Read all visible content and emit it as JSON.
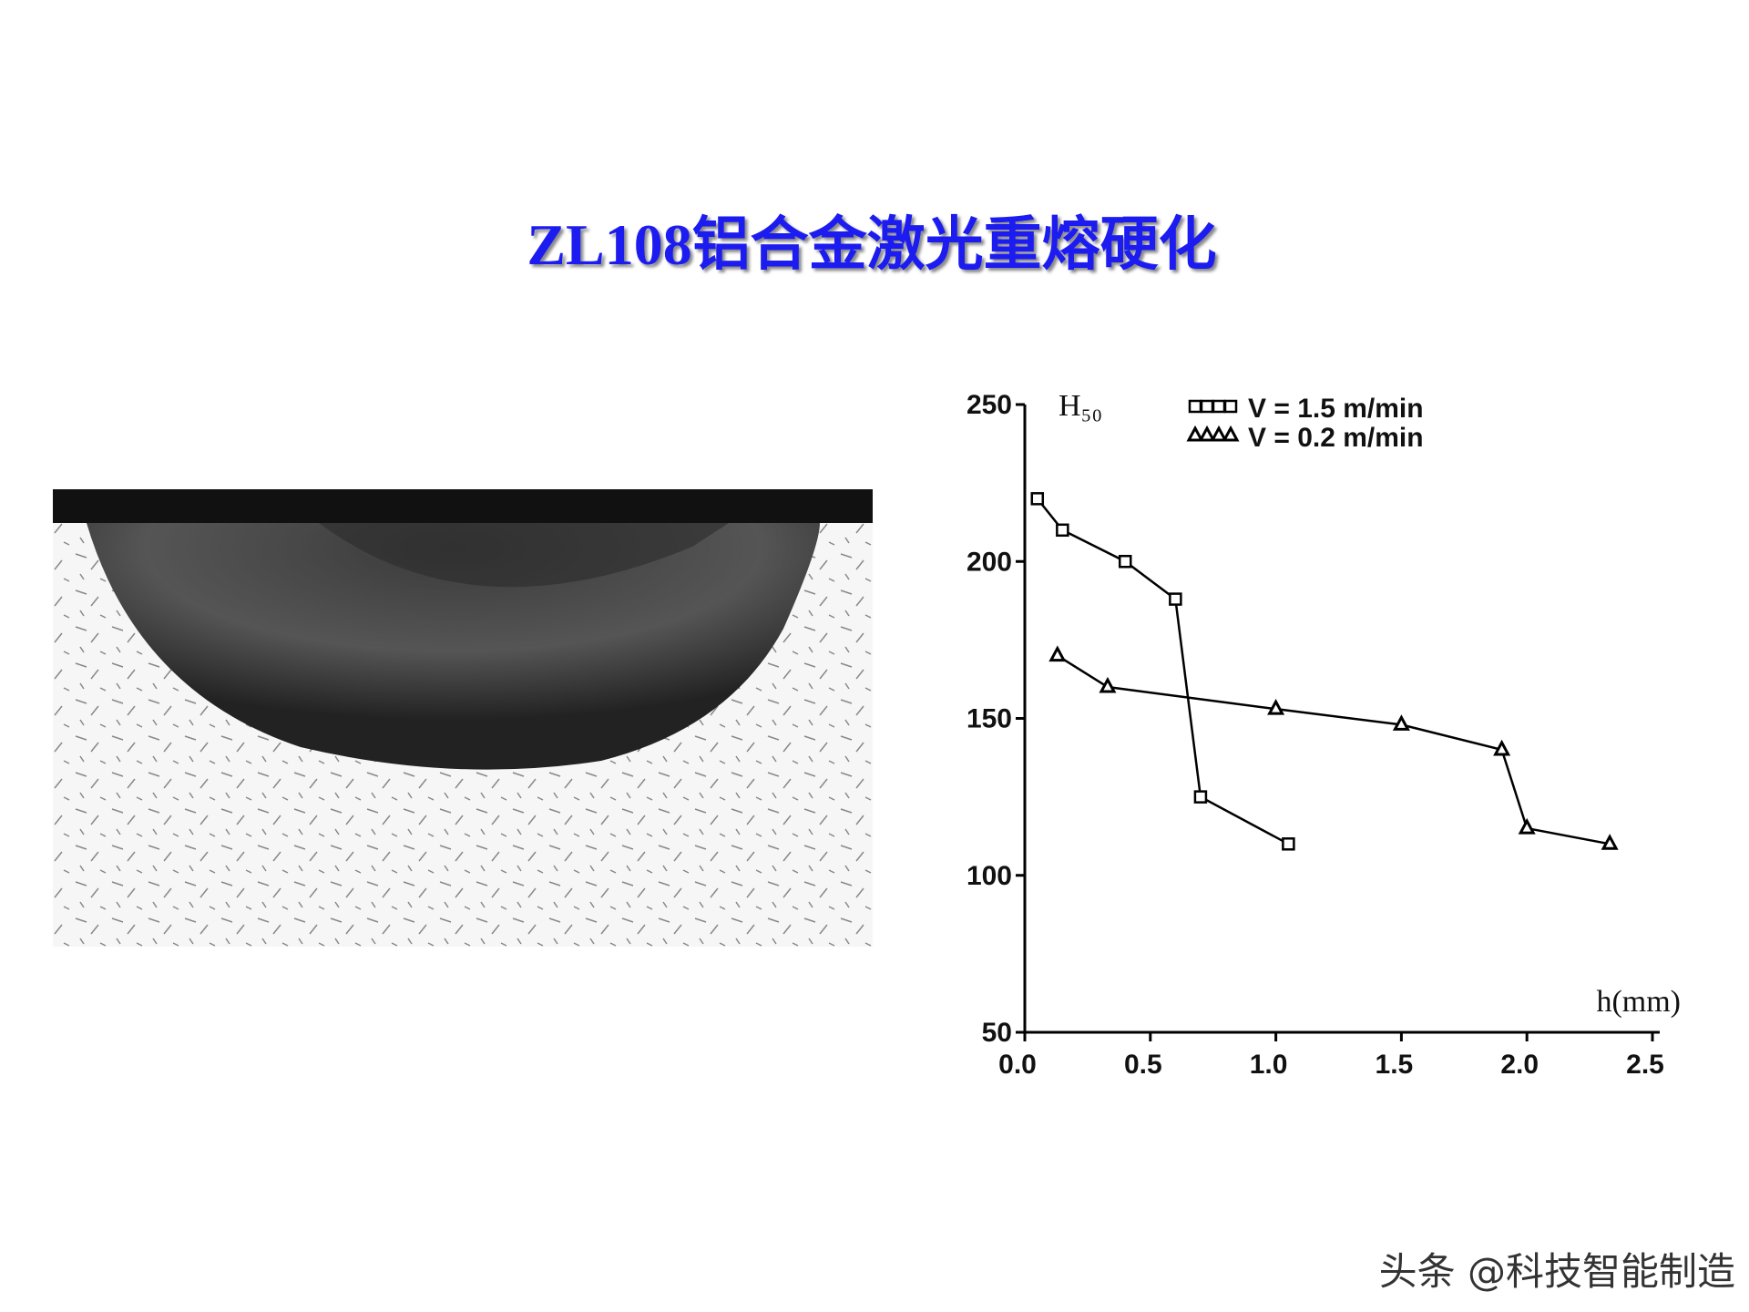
{
  "title": "ZL108铝合金激光重熔硬化",
  "watermark": "头条 @科技智能制造",
  "chart_data": {
    "type": "line",
    "x_label": "h(mm)",
    "y_label": "H₅₀",
    "xlim": [
      0,
      2.5
    ],
    "ylim": [
      50,
      250
    ],
    "xticks": [
      {
        "value": 0,
        "label": "0.0"
      },
      0.5,
      {
        "value": 1,
        "label": "1.0"
      },
      1.5,
      {
        "value": 2,
        "label": "2.0"
      },
      2.5
    ],
    "yticks": [
      50,
      100,
      150,
      200,
      250
    ],
    "grid": false,
    "legend": "top-right",
    "series": [
      {
        "name": "V = 1.5 m/min",
        "marker": "square",
        "color": "#000000",
        "x": [
          0.05,
          0.15,
          0.4,
          0.6,
          0.7,
          1.05
        ],
        "values": [
          220,
          210,
          200,
          188,
          125,
          110
        ]
      },
      {
        "name": "V = 0.2 m/min",
        "marker": "triangle",
        "color": "#000000",
        "x": [
          0.13,
          0.33,
          1.0,
          1.5,
          1.9,
          2.0,
          2.33
        ],
        "values": [
          170,
          160,
          153,
          148,
          140,
          115,
          110
        ]
      }
    ]
  }
}
